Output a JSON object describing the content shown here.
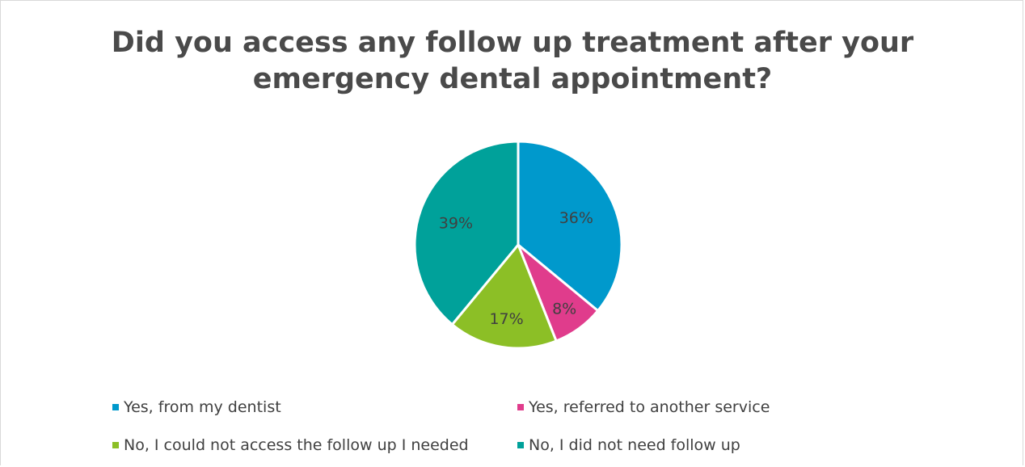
{
  "chart_data": {
    "type": "pie",
    "title_lines": [
      "Did you access any follow up treatment after your",
      "emergency dental appointment?"
    ],
    "slices": [
      {
        "label": "Yes, from my dentist",
        "value": 36,
        "value_label": "36%",
        "color": "#0099cc"
      },
      {
        "label": "Yes, referred to another service",
        "value": 8,
        "value_label": "8%",
        "color": "#e03c8c"
      },
      {
        "label": "No, I could not access the follow up I needed",
        "value": 17,
        "value_label": "17%",
        "color": "#8cbf26"
      },
      {
        "label": "No, I did not need follow up",
        "value": 39,
        "value_label": "39%",
        "color": "#00a19a"
      }
    ],
    "legend_position": "bottom"
  }
}
